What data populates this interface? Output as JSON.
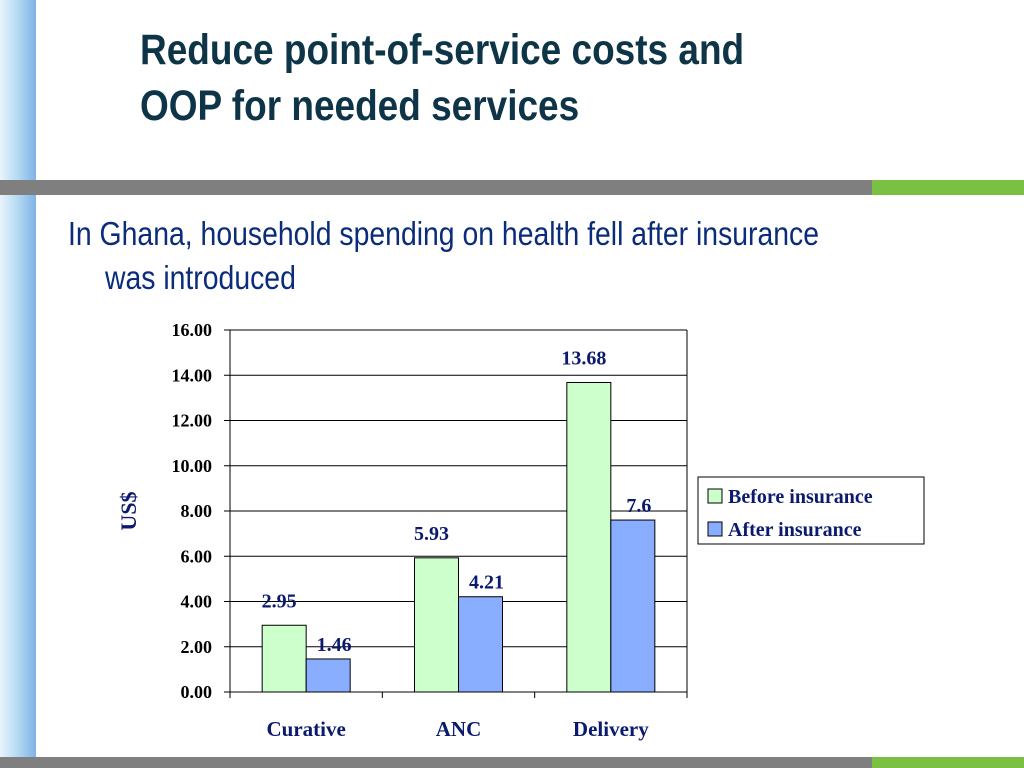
{
  "slide": {
    "title_line1": "Reduce point-of-service costs  and",
    "title_line2": "OOP for needed services",
    "subtitle_line1": "In Ghana, household spending on health  fell after insurance",
    "subtitle_line2": "was introduced"
  },
  "colors": {
    "title": "#0e3448",
    "subtitle": "#0b2c7a",
    "before": "#ccffcc",
    "after": "#8aaeff",
    "rule_gray": "#7f7f7f",
    "rule_green": "#7ac143"
  },
  "chart_data": {
    "type": "bar",
    "categories": [
      "Curative",
      "ANC",
      "Delivery"
    ],
    "series": [
      {
        "name": "Before insurance",
        "values": [
          2.95,
          5.93,
          13.68
        ],
        "labels": [
          "2.95",
          "5.93",
          "13.68"
        ]
      },
      {
        "name": "After insurance",
        "values": [
          1.46,
          4.21,
          7.6
        ],
        "labels": [
          "1.46",
          "4.21",
          "7.6"
        ]
      }
    ],
    "ylabel": "US$",
    "xlabel": "",
    "ylim": [
      0,
      16
    ],
    "ytick_labels": [
      "0.00",
      "2.00",
      "4.00",
      "6.00",
      "8.00",
      "10.00",
      "12.00",
      "14.00",
      "16.00"
    ],
    "grid": true,
    "legend": "right"
  }
}
